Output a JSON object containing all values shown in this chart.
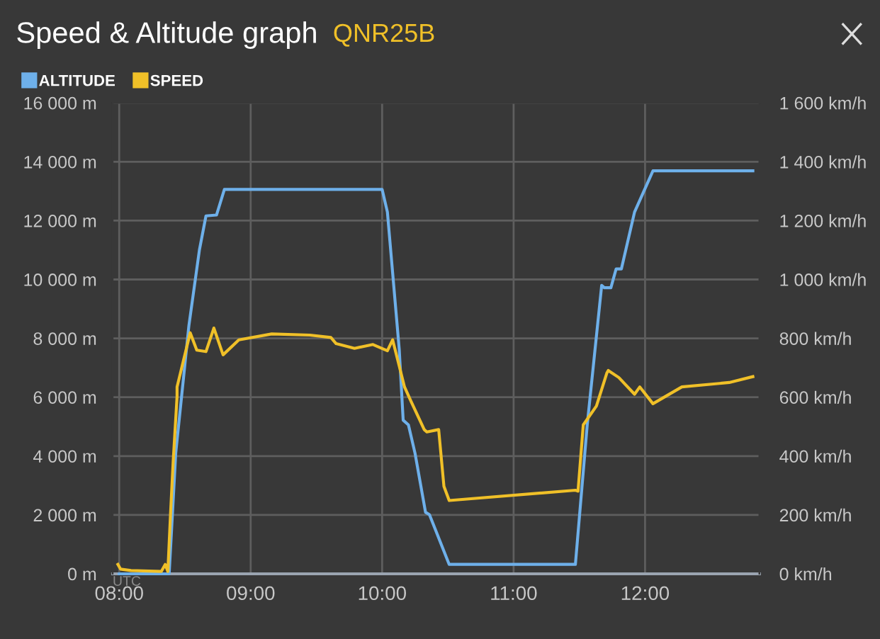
{
  "chart_data": {
    "type": "line",
    "title": "Speed & Altitude graph",
    "subtitle": "QNR25B",
    "xlim": [
      7.95,
      12.87
    ],
    "xticks": [
      {
        "value": 8,
        "label": "08:00"
      },
      {
        "value": 9,
        "label": "09:00"
      },
      {
        "value": 10,
        "label": "10:00"
      },
      {
        "value": 11,
        "label": "11:00"
      },
      {
        "value": 12,
        "label": "12:00"
      }
    ],
    "ylim": [
      0,
      16000
    ],
    "yticks": [
      {
        "value": 0,
        "label": "0 m"
      },
      {
        "value": 2000,
        "label": "2 000 m"
      },
      {
        "value": 4000,
        "label": "4 000 m"
      },
      {
        "value": 6000,
        "label": "6 000 m"
      },
      {
        "value": 8000,
        "label": "8 000 m"
      },
      {
        "value": 10000,
        "label": "10 000 m"
      },
      {
        "value": 12000,
        "label": "12 000 m"
      },
      {
        "value": 14000,
        "label": "14 000 m"
      },
      {
        "value": 16000,
        "label": "16 000 m"
      }
    ],
    "y2lim": [
      0,
      1600
    ],
    "y2ticks": [
      {
        "value": 0,
        "label": "0 km/h"
      },
      {
        "value": 200,
        "label": "200 km/h"
      },
      {
        "value": 400,
        "label": "400 km/h"
      },
      {
        "value": 600,
        "label": "600 km/h"
      },
      {
        "value": 800,
        "label": "800 km/h"
      },
      {
        "value": 1000,
        "label": "1 000 km/h"
      },
      {
        "value": 1200,
        "label": "1 200 km/h"
      },
      {
        "value": 1400,
        "label": "1 400 km/h"
      },
      {
        "value": 1600,
        "label": "1 600 km/h"
      }
    ],
    "grid": true,
    "legend": "top left",
    "marker": "none",
    "line_style": "solid",
    "annotations": [
      "UTC"
    ],
    "series": [
      {
        "name": "ALTITUDE",
        "color": "#6eb0ea",
        "x": [
          8.0,
          8.38,
          8.43,
          8.53,
          8.61,
          8.66,
          8.74,
          8.8,
          10.0,
          10.04,
          10.13,
          10.16,
          10.2,
          10.25,
          10.33,
          10.36,
          10.51,
          11.47,
          11.56,
          11.67,
          11.69,
          11.74,
          11.78,
          11.82,
          11.92,
          12.06,
          12.82
        ],
        "values": [
          0,
          0,
          4100,
          8430,
          11000,
          12160,
          12190,
          13060,
          13060,
          12290,
          7630,
          5220,
          5060,
          4100,
          2090,
          2010,
          320,
          320,
          5060,
          9800,
          9720,
          9720,
          10360,
          10360,
          12290,
          13690,
          13690
        ]
      },
      {
        "name": "SPEED",
        "color": "#f0c028",
        "axis": "y2",
        "x": [
          7.99,
          8.01,
          8.09,
          8.32,
          8.35,
          8.37,
          8.39,
          8.41,
          8.44,
          8.44,
          8.54,
          8.59,
          8.66,
          8.72,
          8.79,
          8.91,
          9.16,
          9.45,
          9.61,
          9.65,
          9.79,
          9.93,
          10.04,
          10.08,
          10.17,
          10.22,
          10.32,
          10.34,
          10.43,
          10.47,
          10.51,
          11.47,
          11.49,
          11.53,
          11.63,
          11.71,
          11.72,
          11.8,
          11.92,
          11.96,
          12.06,
          12.28,
          12.64,
          12.82
        ],
        "values": [
          32,
          16,
          11,
          8,
          32,
          8,
          200,
          377,
          602,
          635,
          819,
          760,
          755,
          835,
          744,
          795,
          815,
          811,
          803,
          782,
          766,
          779,
          758,
          795,
          635,
          586,
          490,
          482,
          490,
          297,
          249,
          284,
          281,
          506,
          570,
          683,
          691,
          667,
          610,
          635,
          578,
          635,
          650,
          670
        ]
      }
    ]
  }
}
